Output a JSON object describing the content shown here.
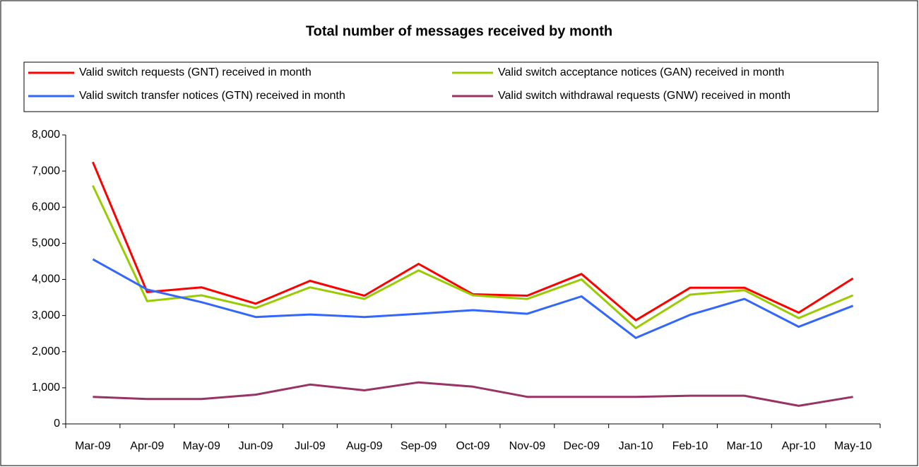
{
  "chart_data": {
    "type": "line",
    "title": "Total number of messages received by month",
    "categories": [
      "Mar-09",
      "Apr-09",
      "May-09",
      "Jun-09",
      "Jul-09",
      "Aug-09",
      "Sep-09",
      "Oct-09",
      "Nov-09",
      "Dec-09",
      "Jan-10",
      "Feb-10",
      "Mar-10",
      "Apr-10",
      "May-10"
    ],
    "series": [
      {
        "name": "Valid switch requests (GNT) received in month",
        "color": "#ff0000",
        "values": [
          7250,
          3650,
          3780,
          3330,
          3960,
          3550,
          4430,
          3590,
          3550,
          4150,
          2870,
          3770,
          3770,
          3080,
          4030
        ]
      },
      {
        "name": "Valid switch acceptance notices (GAN) received in month",
        "color": "#99cc00",
        "values": [
          6600,
          3400,
          3560,
          3210,
          3780,
          3460,
          4250,
          3560,
          3460,
          4000,
          2650,
          3580,
          3700,
          2930,
          3560
        ]
      },
      {
        "name": "Valid switch transfer notices (GTN) received in month",
        "color": "#3366ff",
        "values": [
          4560,
          3720,
          3370,
          2960,
          3030,
          2960,
          3050,
          3150,
          3050,
          3530,
          2380,
          3020,
          3460,
          2690,
          3270
        ]
      },
      {
        "name": "Valid switch withdrawal requests (GNW) received in month",
        "color": "#993366",
        "values": [
          750,
          690,
          690,
          810,
          1090,
          930,
          1150,
          1030,
          750,
          750,
          750,
          780,
          780,
          500,
          750
        ]
      }
    ],
    "ylim": [
      0,
      8000
    ],
    "yticks": [
      0,
      {
        "value": 1000,
        "label": "1,000"
      },
      {
        "value": 2000,
        "label": "2,000"
      },
      {
        "value": 3000,
        "label": "3,000"
      },
      {
        "value": 4000,
        "label": "4,000"
      },
      {
        "value": 5000,
        "label": "5,000"
      },
      {
        "value": 6000,
        "label": "6,000"
      },
      {
        "value": 7000,
        "label": "7,000"
      },
      {
        "value": 8000,
        "label": "8,000"
      }
    ],
    "grid": false
  }
}
